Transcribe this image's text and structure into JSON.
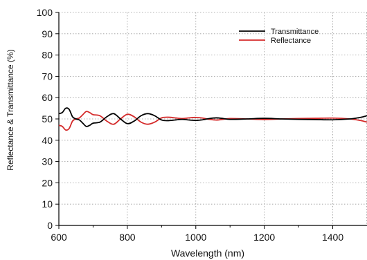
{
  "chart_data": {
    "type": "line",
    "title": "",
    "xlabel": "Wavelength (nm)",
    "ylabel": "Reflectance & Transmittance (%)",
    "xlim": [
      600,
      1500
    ],
    "ylim": [
      0,
      100
    ],
    "x_ticks": [
      600,
      800,
      1000,
      1200,
      1400
    ],
    "y_ticks": [
      0,
      10,
      20,
      30,
      40,
      50,
      60,
      70,
      80,
      90,
      100
    ],
    "grid": true,
    "legend_position": "top-right",
    "series": [
      {
        "name": "Transmittance",
        "color": "#000000",
        "x": [
          600,
          610,
          620,
          630,
          640,
          650,
          660,
          670,
          680,
          690,
          700,
          720,
          740,
          760,
          780,
          800,
          820,
          840,
          860,
          880,
          900,
          920,
          940,
          960,
          980,
          1000,
          1020,
          1040,
          1060,
          1080,
          1100,
          1150,
          1200,
          1250,
          1300,
          1350,
          1400,
          1450,
          1480,
          1500
        ],
        "values": [
          52.5,
          53,
          55,
          54.5,
          51,
          50,
          49.5,
          48,
          46.5,
          47,
          48,
          48.5,
          51,
          52.5,
          50,
          47.8,
          49,
          51.5,
          52.5,
          51.5,
          49.5,
          49.2,
          49.5,
          49.8,
          49.5,
          49.3,
          49.6,
          50.2,
          50.5,
          50.2,
          49.8,
          50,
          50.3,
          50,
          49.8,
          49.7,
          49.6,
          50,
          50.7,
          51.5
        ]
      },
      {
        "name": "Reflectance",
        "color": "#d42a2a",
        "x": [
          600,
          610,
          620,
          630,
          640,
          650,
          660,
          670,
          680,
          690,
          700,
          720,
          740,
          760,
          780,
          800,
          820,
          840,
          860,
          880,
          900,
          920,
          940,
          960,
          980,
          1000,
          1020,
          1040,
          1060,
          1080,
          1100,
          1150,
          1200,
          1250,
          1300,
          1350,
          1400,
          1450,
          1480,
          1500
        ],
        "values": [
          47,
          46.5,
          44.8,
          45.5,
          49,
          50,
          50.5,
          52,
          53.5,
          53,
          52,
          51.5,
          49,
          47.5,
          50,
          52.2,
          51,
          48.5,
          47.5,
          48.5,
          50.5,
          50.8,
          50.5,
          50.2,
          50.5,
          50.7,
          50.4,
          49.8,
          49.5,
          49.8,
          50.2,
          50,
          49.7,
          50,
          50.2,
          50.3,
          50.4,
          50,
          49.3,
          48.5
        ]
      }
    ]
  }
}
